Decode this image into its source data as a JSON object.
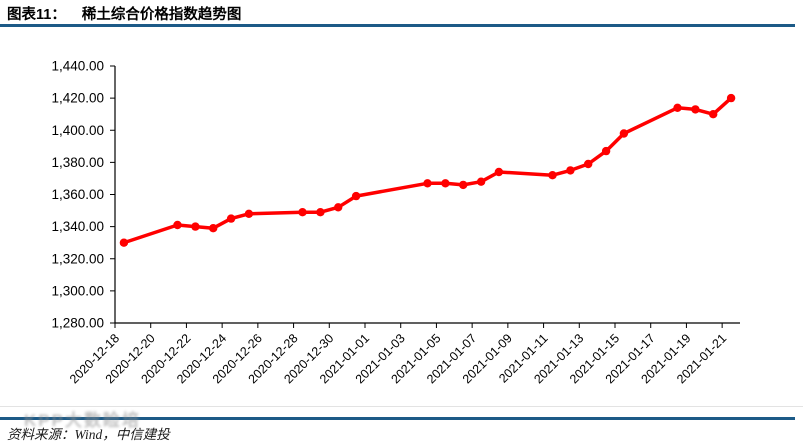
{
  "figure": {
    "label": "图表11：",
    "title": "稀土综合价格指数趋势图"
  },
  "footer": {
    "source": "资料来源：Wind，中信建投"
  },
  "watermark": "KPP大数睑培",
  "colors": {
    "accent_rule": "#1C5A87",
    "series_red": "#FF0000",
    "axis": "#000000"
  },
  "chart_data": {
    "type": "line",
    "title": "稀土综合价格指数趋势图",
    "legend": "none",
    "grid": false,
    "marker": "circle",
    "series_color": "#FF0000",
    "ylim": [
      1280,
      1440
    ],
    "y_tick_step": 20,
    "x": [
      "2020-12-18",
      "2020-12-21",
      "2020-12-22",
      "2020-12-23",
      "2020-12-24",
      "2020-12-25",
      "2020-12-28",
      "2020-12-29",
      "2020-12-30",
      "2020-12-31",
      "2021-01-04",
      "2021-01-05",
      "2021-01-06",
      "2021-01-07",
      "2021-01-08",
      "2021-01-11",
      "2021-01-12",
      "2021-01-13",
      "2021-01-14",
      "2021-01-15",
      "2021-01-18",
      "2021-01-19",
      "2021-01-20",
      "2021-01-21"
    ],
    "values": [
      1330,
      1341,
      1340,
      1339,
      1345,
      1348,
      1349,
      1349,
      1352,
      1359,
      1367,
      1367,
      1366,
      1368,
      1374,
      1372,
      1375,
      1379,
      1387,
      1398,
      1414,
      1413,
      1410,
      1420
    ],
    "x_tick_labels": [
      "2020-12-18",
      "2020-12-20",
      "2020-12-22",
      "2020-12-24",
      "2020-12-26",
      "2020-12-28",
      "2020-12-30",
      "2021-01-01",
      "2021-01-03",
      "2021-01-05",
      "2021-01-07",
      "2021-01-09",
      "2021-01-11",
      "2021-01-13",
      "2021-01-15",
      "2021-01-17",
      "2021-01-19",
      "2021-01-21"
    ],
    "y_ticks": [
      [
        1280,
        "1,280.00"
      ],
      [
        1300,
        "1,300.00"
      ],
      [
        1320,
        "1,320.00"
      ],
      [
        1340,
        "1,340.00"
      ],
      [
        1360,
        "1,360.00"
      ],
      [
        1380,
        "1,380.00"
      ],
      [
        1400,
        "1,400.00"
      ],
      [
        1420,
        "1,420.00"
      ],
      [
        1440,
        "1,440.00"
      ]
    ]
  }
}
